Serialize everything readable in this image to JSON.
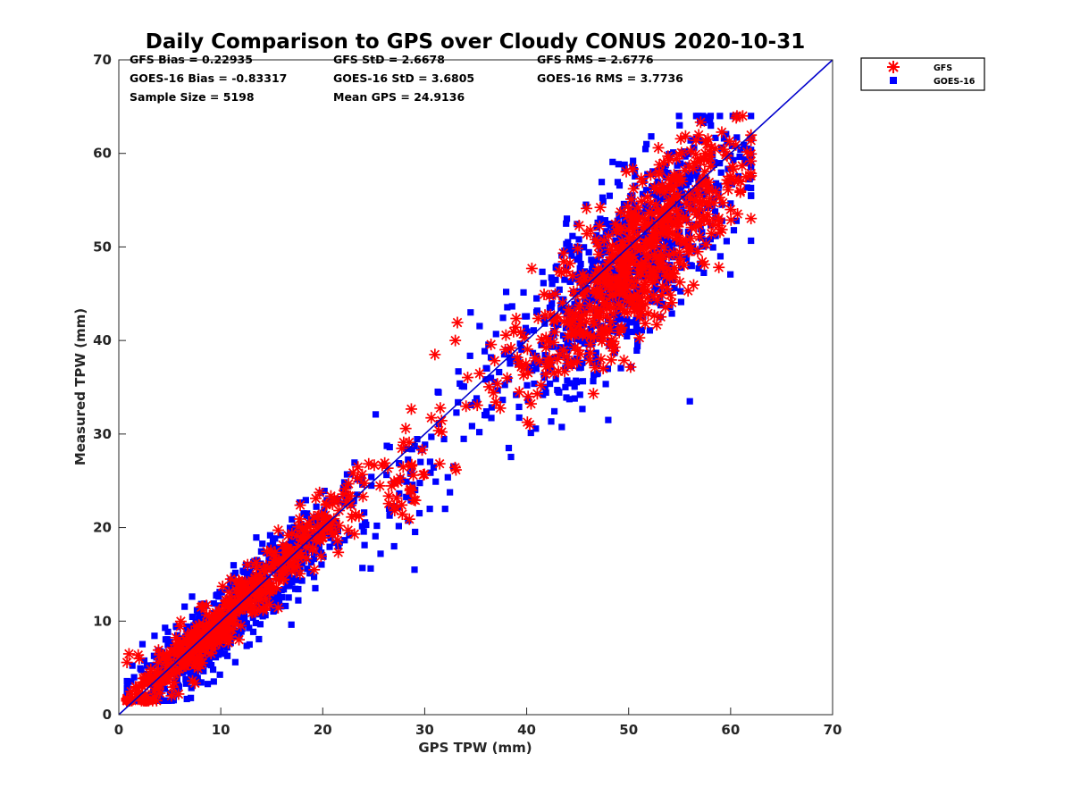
{
  "chart_data": {
    "type": "scatter",
    "title": "Daily Comparison to GPS over Cloudy CONUS 2020-10-31",
    "xlabel": "GPS TPW (mm)",
    "ylabel": "Measured TPW (mm)",
    "xlim": [
      0,
      70
    ],
    "ylim": [
      0,
      70
    ],
    "xticks": [
      "0",
      "10",
      "20",
      "30",
      "40",
      "50",
      "60",
      "70"
    ],
    "yticks": [
      "0",
      "10",
      "20",
      "30",
      "40",
      "50",
      "60",
      "70"
    ],
    "stats": [
      "GFS Bias = 0.22935",
      "GFS StD = 2.6678",
      "GFS RMS = 2.6776",
      "GOES-16 Bias = -0.83317",
      "GOES-16 StD = 3.6805",
      "GOES-16 RMS = 3.7736",
      "Sample Size = 5198",
      "Mean GPS = 24.9136"
    ],
    "legend_position": "outside-top-right",
    "reference_line": {
      "name": "1:1 line",
      "x": [
        0,
        70
      ],
      "y": [
        0,
        70
      ],
      "color": "#0000cc"
    },
    "series": [
      {
        "name": "GFS",
        "marker": "asterisk",
        "color": "#ff0000",
        "clusters": [
          {
            "cx": 9,
            "cy": 9,
            "sx": 4.5,
            "sy": 4.5,
            "n": 420,
            "scatter": 1.5
          },
          {
            "cx": 19,
            "cy": 19,
            "sx": 3,
            "sy": 3,
            "n": 90,
            "scatter": 1.8
          },
          {
            "cx": 29,
            "cy": 27,
            "sx": 2.2,
            "sy": 2.2,
            "n": 40,
            "scatter": 2.5
          },
          {
            "cx": 37,
            "cy": 37,
            "sx": 3,
            "sy": 3,
            "n": 25,
            "scatter": 2.5
          },
          {
            "cx": 51,
            "cy": 49,
            "sx": 5,
            "sy": 5,
            "n": 600,
            "scatter": 4
          }
        ],
        "points": [
          [
            1,
            6.5
          ],
          [
            2,
            6
          ],
          [
            31,
            38.5
          ],
          [
            33,
            40
          ],
          [
            40.3,
            31
          ],
          [
            47.5,
            37
          ],
          [
            57.5,
            60
          ],
          [
            61,
            57
          ],
          [
            60,
            54
          ],
          [
            61.5,
            57.5
          ]
        ]
      },
      {
        "name": "GOES-16",
        "marker": "square",
        "color": "#0000ff",
        "clusters": [
          {
            "cx": 9,
            "cy": 8.5,
            "sx": 4.5,
            "sy": 4.5,
            "n": 700,
            "scatter": 2
          },
          {
            "cx": 18,
            "cy": 18,
            "sx": 3.2,
            "sy": 3.2,
            "n": 200,
            "scatter": 2.2
          },
          {
            "cx": 28,
            "cy": 25,
            "sx": 2.5,
            "sy": 2.5,
            "n": 60,
            "scatter": 3.5
          },
          {
            "cx": 37,
            "cy": 36,
            "sx": 3,
            "sy": 3,
            "n": 30,
            "scatter": 3
          },
          {
            "cx": 50,
            "cy": 48,
            "sx": 5.5,
            "sy": 5.5,
            "n": 900,
            "scatter": 4.5
          }
        ],
        "points": [
          [
            1.5,
            4
          ],
          [
            2,
            2
          ],
          [
            27,
            18
          ],
          [
            29,
            15.5
          ],
          [
            30.5,
            22
          ],
          [
            32,
            22
          ],
          [
            34.5,
            43
          ],
          [
            48,
            31.5
          ],
          [
            56,
            33.5
          ],
          [
            57,
            63.5
          ],
          [
            55,
            63
          ],
          [
            59,
            49
          ]
        ]
      }
    ]
  }
}
